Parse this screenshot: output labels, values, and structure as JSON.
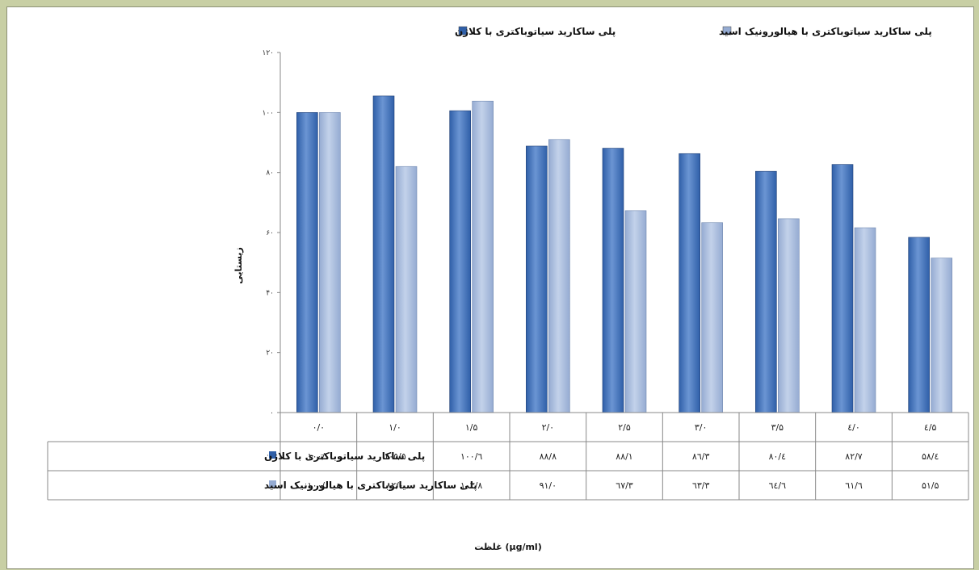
{
  "colors": {
    "series1": "#2f5fa8",
    "series1_light": "#6b95d3",
    "series2": "#95abd2",
    "series2_light": "#c3d2ea",
    "grid": "#bfbfbf",
    "frame_bg": "#c8cfa4"
  },
  "chart_data": {
    "type": "bar",
    "categories": [
      "۰/۰",
      "۱/۰",
      "۱/۵",
      "۲/۰",
      "۲/۵",
      "۳/۰",
      "۳/۵",
      "٤/۰",
      "٤/۵"
    ],
    "series": [
      {
        "name": "پلی ساکارید سیاتوباکتری با کلاژن",
        "values": [
          100.0,
          105.5,
          100.6,
          88.8,
          88.1,
          86.3,
          80.4,
          82.7,
          58.4
        ],
        "labels": [
          "۱۰۰/۰",
          "۱۰۵/۵",
          "۱۰۰/٦",
          "۸۸/۸",
          "۸۸/۱",
          "۸٦/۳",
          "۸۰/٤",
          "۸۲/۷",
          "۵۸/٤"
        ]
      },
      {
        "name": "پلی ساکارید سیاتوباکتری با هیالورونیک اسید",
        "values": [
          100.0,
          82.0,
          103.8,
          91.0,
          67.3,
          63.3,
          64.6,
          61.6,
          51.5
        ],
        "labels": [
          "۱۰۰/۰",
          "۸۲/۰",
          "۱۰۳/۸",
          "۹۱/۰",
          "٦۷/۳",
          "٦۳/۳",
          "٦٤/٦",
          "٦۱/٦",
          "۵۱/۵"
        ]
      }
    ],
    "ylim": [
      0,
      120
    ],
    "yticks": [
      0,
      20,
      40,
      60,
      80,
      100,
      120
    ],
    "ytick_labels": [
      "۰",
      "۲۰",
      "۴۰",
      "۶۰",
      "۸۰",
      "۱۰۰",
      "۱۲۰"
    ],
    "ylabel": "زیستایی",
    "xlabel": "غلظت (µg/ml)",
    "legend_position": "top",
    "grid": false,
    "data_table": true
  }
}
